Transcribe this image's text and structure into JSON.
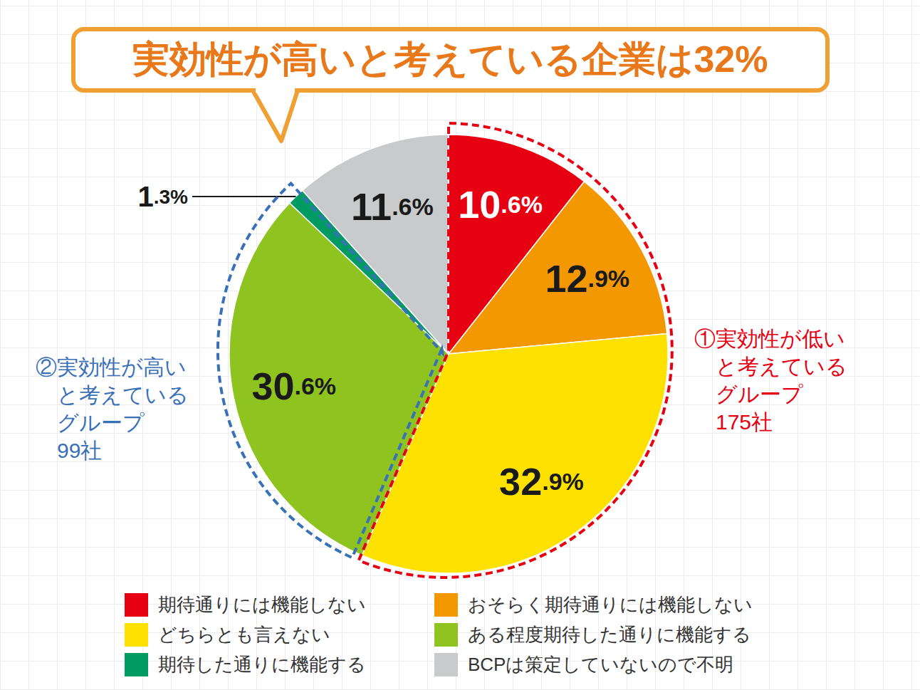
{
  "chart_data": {
    "type": "pie",
    "title": "実効性が高いと考えている企業は32%",
    "categories": [
      "期待通りには機能しない",
      "おそらく期待通りには機能しない",
      "どちらとも言えない",
      "ある程度期待した通りに機能する",
      "期待した通りに機能する",
      "BCPは策定していないので不明"
    ],
    "values": [
      10.6,
      12.9,
      32.9,
      30.6,
      1.3,
      11.6
    ],
    "value_labels": [
      "10.6%",
      "12.9%",
      "32.9%",
      "30.6%",
      "1.3%",
      "11.6%"
    ],
    "colors": [
      "#e60012",
      "#f39800",
      "#ffe100",
      "#8fc31f",
      "#009b63",
      "#c9cacb"
    ],
    "data_labels": true,
    "legend": "bottom",
    "annotations": [
      {
        "text": [
          "①実効性が低い",
          "と考えている",
          "グループ",
          "175社"
        ],
        "color": "#e60012",
        "members": [
          "期待通りには機能しない",
          "おそらく期待通りには機能しない",
          "どちらとも言えない"
        ]
      },
      {
        "text": [
          "②実効性が高い",
          "と考えている",
          "グループ",
          "99社"
        ],
        "color": "#3a70b8",
        "members": [
          "ある程度期待した通りに機能する",
          "期待した通りに機能する"
        ]
      }
    ]
  }
}
